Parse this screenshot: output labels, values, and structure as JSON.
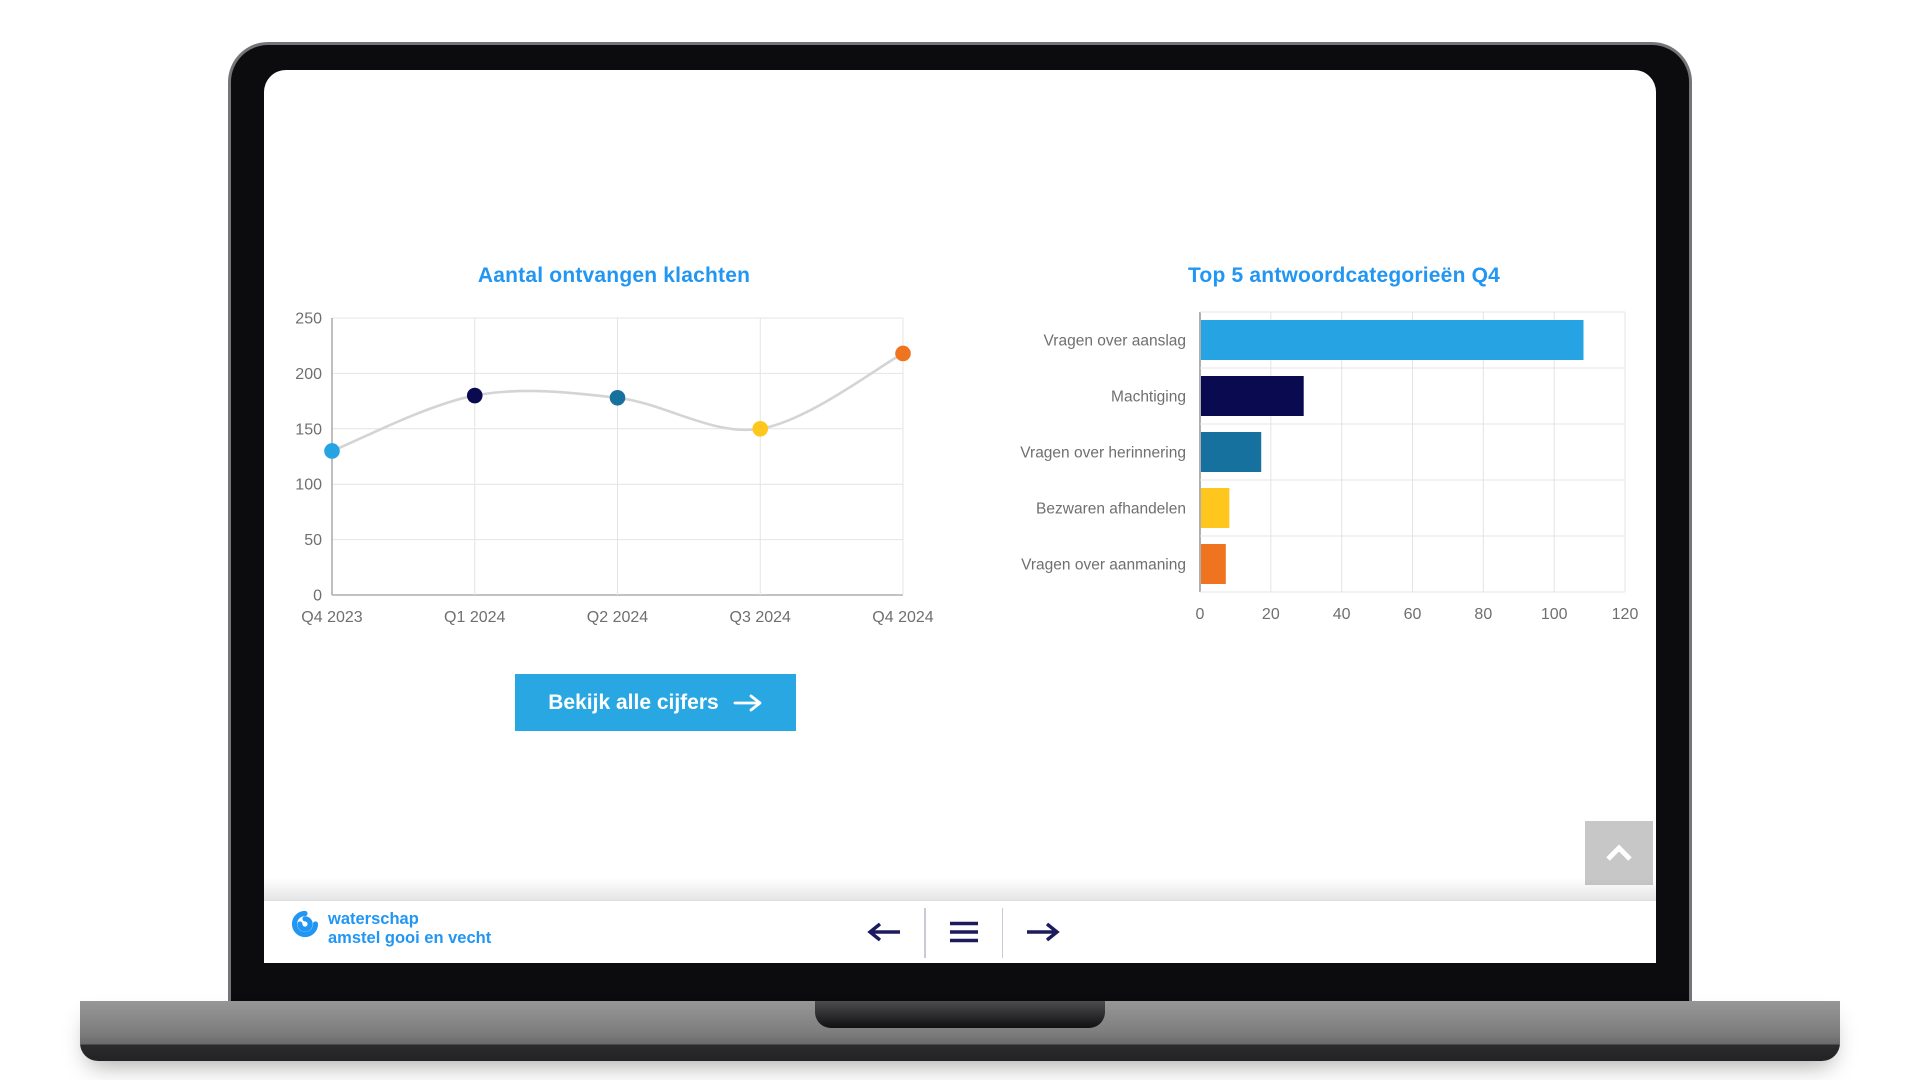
{
  "chart_data": [
    {
      "type": "line",
      "title": "Aantal ontvangen klachten",
      "categories": [
        "Q4 2023",
        "Q1 2024",
        "Q2 2024",
        "Q3 2024",
        "Q4 2024"
      ],
      "values": [
        130,
        180,
        178,
        150,
        218
      ],
      "point_colors": [
        "#25a3e2",
        "#0a0a50",
        "#16719e",
        "#ffc71d",
        "#f0741f"
      ],
      "line_color": "#d4d4d4",
      "y_ticks": [
        0,
        50,
        100,
        150,
        200,
        250
      ],
      "ylim": [
        0,
        250
      ],
      "xlabel": "",
      "ylabel": "",
      "grid": true,
      "legend": false
    },
    {
      "type": "bar",
      "orientation": "horizontal",
      "title": "Top 5 antwoordcategorieën Q4",
      "categories": [
        "Vragen over aanslag",
        "Machtiging",
        "Vragen over herinnering",
        "Bezwaren afhandelen",
        "Vragen over aanmaning"
      ],
      "values": [
        108,
        29,
        17,
        8,
        7
      ],
      "bar_colors": [
        "#25a3e2",
        "#0a0a50",
        "#16719e",
        "#ffc71d",
        "#f0741f"
      ],
      "x_ticks": [
        0,
        20,
        40,
        60,
        80,
        100,
        120
      ],
      "xlim": [
        0,
        120
      ],
      "xlabel": "",
      "ylabel": "",
      "grid": true,
      "legend": false
    }
  ],
  "cta": {
    "label": "Bekijk alle cijfers",
    "arrow_icon": "arrow-right",
    "background": "#29a7e2"
  },
  "scroll_top": {
    "icon": "chevron-up",
    "background": "#c7c7c7"
  },
  "footer": {
    "logo": {
      "icon": "waterschap-swirl",
      "line1": "waterschap",
      "line2": "amstel gooi en vecht",
      "color": "#2196f3"
    },
    "nav": {
      "back_icon": "arrow-left",
      "menu_icon": "menu",
      "forward_icon": "arrow-right",
      "icon_color": "#1b1b5e"
    }
  },
  "colors": {
    "chart_title": "#2196f3",
    "axis_text": "#6f6f6f",
    "grid_line": "#e4e4e4",
    "axis_line": "#adadad"
  }
}
